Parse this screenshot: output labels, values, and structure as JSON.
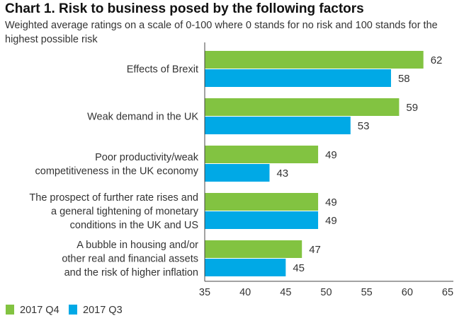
{
  "chart_data": {
    "type": "bar",
    "orientation": "horizontal",
    "title": "Chart 1. Risk to business posed by the following factors",
    "subtitle": "Weighted average ratings on a scale of 0-100 where 0 stands for no risk and 100 stands for the highest possible risk",
    "categories": [
      [
        "Effects of Brexit"
      ],
      [
        "Weak demand in the UK"
      ],
      [
        "Poor productivity/weak",
        "competitiveness in the UK economy"
      ],
      [
        "The prospect of further rate rises and",
        "a general tightening of monetary",
        "conditions in the UK and US"
      ],
      [
        "A bubble in housing and/or",
        "other real and financial assets",
        "and the risk of higher inflation"
      ]
    ],
    "series": [
      {
        "name": "2017 Q4",
        "color": "#82c341",
        "values": [
          62,
          59,
          49,
          49,
          47
        ]
      },
      {
        "name": "2017 Q3",
        "color": "#00a9e6",
        "values": [
          58,
          53,
          43,
          49,
          45
        ]
      }
    ],
    "xlim": [
      35,
      65
    ],
    "xticks": [
      "35",
      "40",
      "45",
      "50",
      "55",
      "60",
      "65"
    ],
    "xlabel": "",
    "ylabel": "",
    "grid": false,
    "legend_position": "bottom-left"
  }
}
